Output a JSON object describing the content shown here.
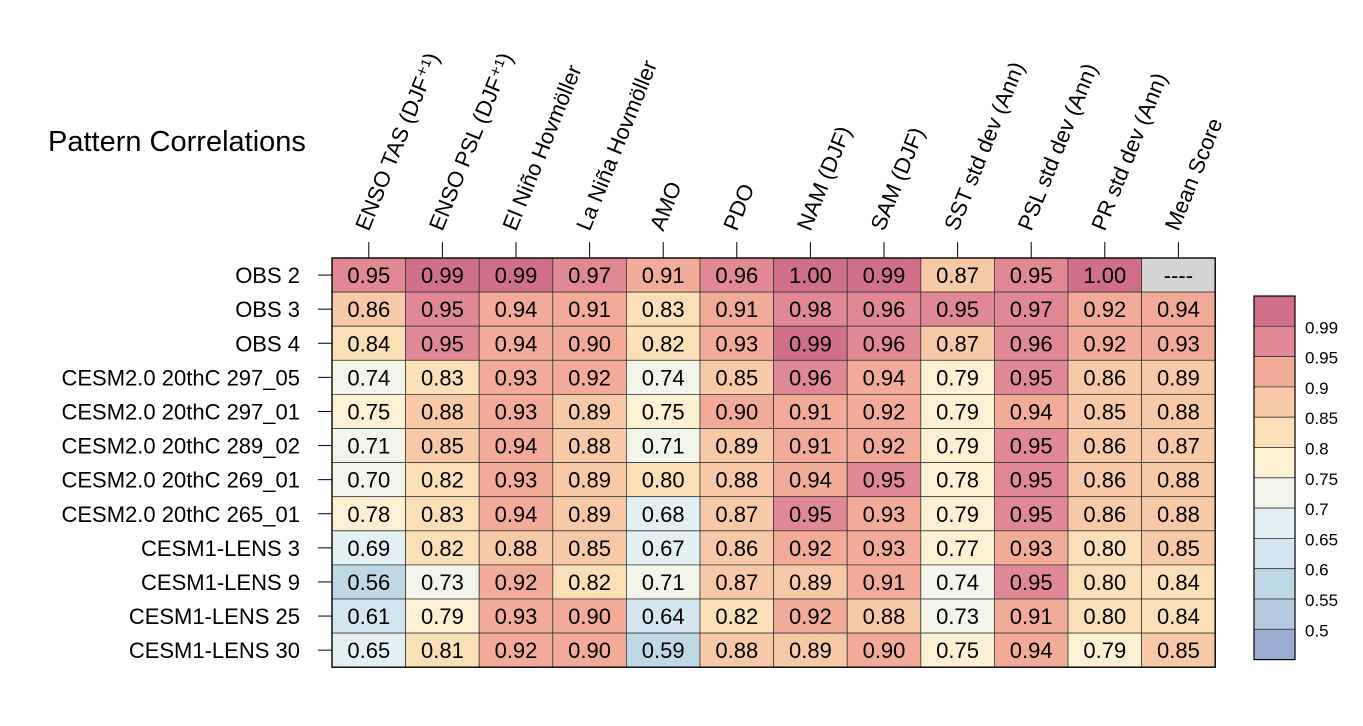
{
  "chart_data": {
    "type": "heatmap",
    "title": "Pattern Correlations",
    "columns": [
      "ENSO TAS (DJF⁺¹)",
      "ENSO PSL (DJF⁺¹)",
      "El Niño Hovmöller",
      "La Niña Hovmöller",
      "AMO",
      "PDO",
      "NAM (DJF)",
      "SAM (DJF)",
      "SST std dev (Ann)",
      "PSL std dev (Ann)",
      "PR std dev (Ann)",
      "Mean Score"
    ],
    "rows": [
      "OBS 2",
      "OBS 3",
      "OBS 4",
      "CESM2.0 20thC 297_05",
      "CESM2.0 20thC 297_01",
      "CESM2.0 20thC 289_02",
      "CESM2.0 20thC 269_01",
      "CESM2.0 20thC 265_01",
      "CESM1-LENS 3",
      "CESM1-LENS 9",
      "CESM1-LENS 25",
      "CESM1-LENS 30"
    ],
    "values": [
      [
        "0.95",
        "0.99",
        "0.99",
        "0.97",
        "0.91",
        "0.96",
        "1.00",
        "0.99",
        "0.87",
        "0.95",
        "1.00",
        "----"
      ],
      [
        "0.86",
        "0.95",
        "0.94",
        "0.91",
        "0.83",
        "0.91",
        "0.98",
        "0.96",
        "0.95",
        "0.97",
        "0.92",
        "0.94"
      ],
      [
        "0.84",
        "0.95",
        "0.94",
        "0.90",
        "0.82",
        "0.93",
        "0.99",
        "0.96",
        "0.87",
        "0.96",
        "0.92",
        "0.93"
      ],
      [
        "0.74",
        "0.83",
        "0.93",
        "0.92",
        "0.74",
        "0.85",
        "0.96",
        "0.94",
        "0.79",
        "0.95",
        "0.86",
        "0.89"
      ],
      [
        "0.75",
        "0.88",
        "0.93",
        "0.89",
        "0.75",
        "0.90",
        "0.91",
        "0.92",
        "0.79",
        "0.94",
        "0.85",
        "0.88"
      ],
      [
        "0.71",
        "0.85",
        "0.94",
        "0.88",
        "0.71",
        "0.89",
        "0.91",
        "0.92",
        "0.79",
        "0.95",
        "0.86",
        "0.87"
      ],
      [
        "0.70",
        "0.82",
        "0.93",
        "0.89",
        "0.80",
        "0.88",
        "0.94",
        "0.95",
        "0.78",
        "0.95",
        "0.86",
        "0.88"
      ],
      [
        "0.78",
        "0.83",
        "0.94",
        "0.89",
        "0.68",
        "0.87",
        "0.95",
        "0.93",
        "0.79",
        "0.95",
        "0.86",
        "0.88"
      ],
      [
        "0.69",
        "0.82",
        "0.88",
        "0.85",
        "0.67",
        "0.86",
        "0.92",
        "0.93",
        "0.77",
        "0.93",
        "0.80",
        "0.85"
      ],
      [
        "0.56",
        "0.73",
        "0.92",
        "0.82",
        "0.71",
        "0.87",
        "0.89",
        "0.91",
        "0.74",
        "0.95",
        "0.80",
        "0.84"
      ],
      [
        "0.61",
        "0.79",
        "0.93",
        "0.90",
        "0.64",
        "0.82",
        "0.92",
        "0.88",
        "0.73",
        "0.91",
        "0.80",
        "0.84"
      ],
      [
        "0.65",
        "0.81",
        "0.92",
        "0.90",
        "0.59",
        "0.88",
        "0.89",
        "0.90",
        "0.75",
        "0.94",
        "0.79",
        "0.85"
      ]
    ],
    "colorbar": {
      "labels": [
        "0.99",
        "0.95",
        "0.9",
        "0.85",
        "0.8",
        "0.75",
        "0.7",
        "0.65",
        "0.6",
        "0.55",
        "0.5"
      ],
      "thresholds": [
        0.5,
        0.55,
        0.6,
        0.65,
        0.7,
        0.75,
        0.8,
        0.85,
        0.9,
        0.95,
        0.99
      ],
      "colors": [
        "#9aaed4",
        "#b5cce0",
        "#bed8e6",
        "#d3e6f0",
        "#e4f1f4",
        "#f3f4ea",
        "#fdf1d4",
        "#fbdfb7",
        "#f8c9a6",
        "#f2ab98",
        "#e08893",
        "#cf7088"
      ],
      "missing_color": "#d4d4d4"
    }
  }
}
